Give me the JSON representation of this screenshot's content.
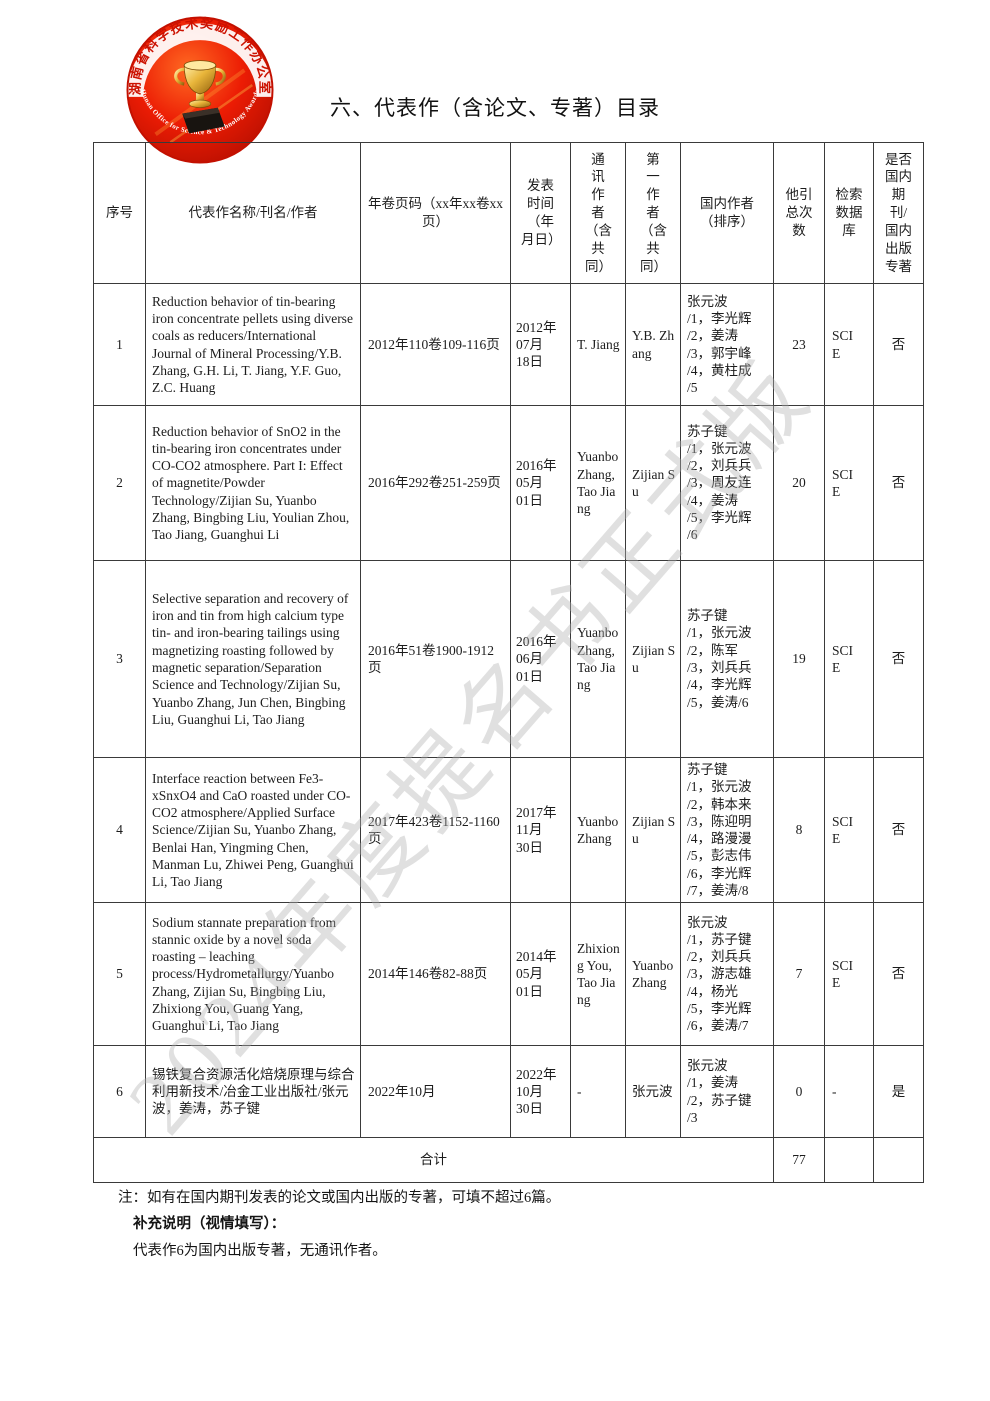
{
  "page": {
    "title": "六、代表作（含论文、专著）目录",
    "watermark": "2024年度提名书正式版",
    "logo": {
      "ring_text_zh": "湖南省科学技术奖励工作办公室",
      "ring_text_en": "Hunan Office for Science & Technology Awards",
      "accent_red": "#d81e06",
      "trophy_gold": "#e0a92e"
    }
  },
  "table": {
    "headers": [
      "序号",
      "代表作名称/刊名/作者",
      "年卷页码（xx年xx卷xx页）",
      "发表时间（年月日）",
      "通讯作者（含共同）",
      "第一作者（含共同）",
      "国内作者（排序）",
      "他引总次数",
      "检索数据库",
      "是否国内期刊/国内出版专著"
    ],
    "rows": [
      {
        "no": "1",
        "title": "Reduction behavior of tin-bearing iron concentrate pellets using diverse coals as reducers/International Journal of Mineral Processing/Y.B. Zhang, G.H. Li, T. Jiang, Y.F. Guo, Z.C. Huang",
        "volume_pages": "2012年110卷109-116页",
        "pub_date": "2012年\n07月\n18日",
        "corresponding_author": "T. Jiang",
        "first_author": "Y.B. Zhang",
        "domestic_authors": "张元波\n/1，李光辉\n/2，姜涛\n/3，郭宇峰\n/4，黄柱成\n/5",
        "citations": "23",
        "database": "SCIE",
        "is_domestic": "否"
      },
      {
        "no": "2",
        "title": "Reduction behavior of SnO2 in the tin-bearing iron concentrates under CO-CO2 atmosphere. Part I: Effect of magnetite/Powder Technology/Zijian Su, Yuanbo Zhang, Bingbing Liu, Youlian Zhou, Tao Jiang, Guanghui Li",
        "volume_pages": "2016年292卷251-259页",
        "pub_date": "2016年\n05月\n01日",
        "corresponding_author": "Yuanbo Zhang, Tao Jiang",
        "first_author": "Zijian Su",
        "domestic_authors": "苏子键\n/1，张元波\n/2，刘兵兵\n/3，周友连\n/4，姜涛\n/5，李光辉\n/6",
        "citations": "20",
        "database": "SCIE",
        "is_domestic": "否"
      },
      {
        "no": "3",
        "title": "Selective separation and recovery of iron and tin from high calcium type tin- and iron-bearing tailings using magnetizing roasting followed by magnetic separation/Separation Science and Technology/Zijian Su, Yuanbo Zhang, Jun Chen, Bingbing Liu, Guanghui Li, Tao Jiang",
        "volume_pages": "2016年51卷1900-1912页",
        "pub_date": "2016年\n06月\n01日",
        "corresponding_author": "Yuanbo Zhang, Tao Jiang",
        "first_author": "Zijian Su",
        "domestic_authors": "苏子键\n/1，张元波\n/2，陈军\n/3，刘兵兵\n/4，李光辉\n/5，姜涛/6",
        "citations": "19",
        "database": "SCIE",
        "is_domestic": "否"
      },
      {
        "no": "4",
        "title": "Interface reaction between Fe3-xSnxO4 and CaO roasted under CO-CO2 atmosphere/Applied Surface Science/Zijian Su, Yuanbo Zhang, Benlai Han, Yingming Chen, Manman Lu, Zhiwei Peng, Guanghui Li, Tao Jiang",
        "volume_pages": "2017年423卷1152-1160页",
        "pub_date": "2017年\n11月\n30日",
        "corresponding_author": "Yuanbo Zhang",
        "first_author": "Zijian Su",
        "domestic_authors": "苏子键\n/1，张元波\n/2，韩本来\n/3，陈迎明\n/4，路漫漫\n/5，彭志伟\n/6，李光辉\n/7，姜涛/8",
        "citations": "8",
        "database": "SCIE",
        "is_domestic": "否"
      },
      {
        "no": "5",
        "title": "Sodium stannate preparation from stannic oxide by a novel soda roasting – leaching process/Hydrometallurgy/Yuanbo Zhang, Zijian Su, Bingbing Liu, Zhixiong You, Guang Yang, Guanghui Li, Tao Jiang",
        "volume_pages": "2014年146卷82-88页",
        "pub_date": "2014年\n05月\n01日",
        "corresponding_author": "Zhixiong You, Tao Jiang",
        "first_author": "Yuanbo Zhang",
        "domestic_authors": "张元波\n/1，苏子键\n/2，刘兵兵\n/3，游志雄\n/4，杨光\n/5，李光辉\n/6，姜涛/7",
        "citations": "7",
        "database": "SCIE",
        "is_domestic": "否"
      },
      {
        "no": "6",
        "title": "锡铁复合资源活化焙烧原理与综合利用新技术/冶金工业出版社/张元波，姜涛，苏子键",
        "volume_pages": "2022年10月",
        "pub_date": "2022年\n10月\n30日",
        "corresponding_author": "-",
        "first_author": "张元波",
        "domestic_authors": "张元波\n/1，姜涛\n/2，苏子键\n/3",
        "citations": "0",
        "database": "-",
        "is_domestic": "是"
      }
    ],
    "total": {
      "label": "合计",
      "citations_total": "77"
    }
  },
  "notes": {
    "line1": "注：如有在国内期刊发表的论文或国内出版的专著，可填不超过6篇。",
    "line2": "补充说明（视情填写）：",
    "line3": "代表作6为国内出版专著，无通讯作者。"
  }
}
